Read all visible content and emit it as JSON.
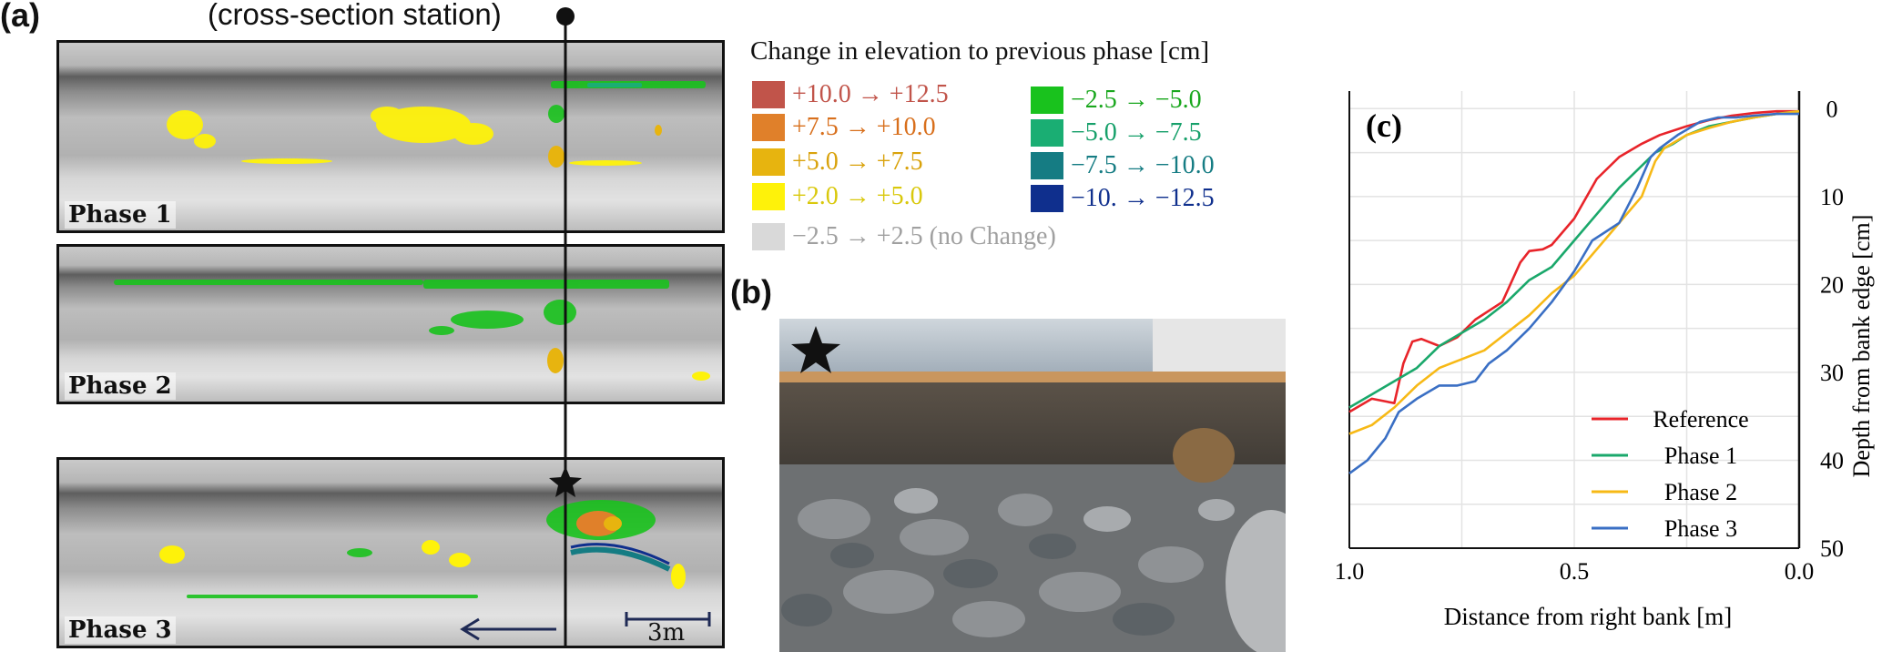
{
  "panel_a": {
    "label": "(a)",
    "station_label": "(cross-section station)",
    "phases": [
      "Phase 1",
      "Phase 2",
      "Phase 3"
    ],
    "scale_label": "3m"
  },
  "legend": {
    "title": "Change in elevation to previous phase [cm]",
    "items": [
      {
        "text": "+10.0 → +12.5",
        "color": "#c1544a"
      },
      {
        "text": "+7.5 → +10.0",
        "color": "#e0802a"
      },
      {
        "text": "+5.0 → +7.5",
        "color": "#e7b40f"
      },
      {
        "text": "+2.0 → +5.0",
        "color": "#fef20a"
      },
      {
        "text": "−2.5 → +2.5 (no Change)",
        "color": "#d9d9d9"
      },
      {
        "text": "−2.5 → −5.0",
        "color": "#19c21d"
      },
      {
        "text": "−5.0 → −7.5",
        "color": "#1aae73"
      },
      {
        "text": "−7.5 → −10.0",
        "color": "#157c83"
      },
      {
        "text": "−10. → −12.5",
        "color": "#0f2f8d"
      }
    ]
  },
  "panel_b": {
    "label": "(b)"
  },
  "panel_c": {
    "label": "(c)"
  },
  "chart_data": {
    "type": "line",
    "xlabel": "Distance from right bank [m]",
    "ylabel": "Depth from bank edge [cm]",
    "xlim": [
      1.0,
      0.0
    ],
    "ylim": [
      50,
      -2
    ],
    "xticks": [
      "1.0",
      "0.5",
      "0.0"
    ],
    "yticks": [
      "0",
      "10",
      "20",
      "30",
      "40",
      "50"
    ],
    "grid": true,
    "legend_position": "bottom-right",
    "series": [
      {
        "name": "Reference",
        "color": "#e8242a",
        "x": [
          1.0,
          0.95,
          0.9,
          0.88,
          0.86,
          0.84,
          0.8,
          0.76,
          0.72,
          0.66,
          0.62,
          0.6,
          0.57,
          0.55,
          0.5,
          0.45,
          0.4,
          0.35,
          0.31,
          0.25,
          0.2,
          0.15,
          0.1,
          0.05,
          0.0
        ],
        "y": [
          34.5,
          33.0,
          33.5,
          29.0,
          26.5,
          26.2,
          27.0,
          26.0,
          24.0,
          22.0,
          17.5,
          16.2,
          16.0,
          15.5,
          12.5,
          8.0,
          5.5,
          4.0,
          3.0,
          2.0,
          1.3,
          0.8,
          0.5,
          0.3,
          0.3
        ]
      },
      {
        "name": "Phase 1",
        "color": "#1aa86b",
        "x": [
          1.0,
          0.95,
          0.9,
          0.85,
          0.8,
          0.75,
          0.7,
          0.65,
          0.6,
          0.55,
          0.5,
          0.45,
          0.4,
          0.35,
          0.32,
          0.28,
          0.25,
          0.2,
          0.15,
          0.1,
          0.05,
          0.0
        ],
        "y": [
          34.0,
          32.5,
          31.0,
          29.5,
          27.0,
          25.5,
          24.0,
          22.0,
          19.5,
          18.0,
          15.0,
          12.0,
          9.0,
          6.5,
          5.0,
          4.0,
          3.0,
          2.0,
          1.5,
          1.0,
          0.6,
          0.3
        ]
      },
      {
        "name": "Phase 2",
        "color": "#f7b916",
        "x": [
          1.0,
          0.95,
          0.9,
          0.85,
          0.8,
          0.75,
          0.7,
          0.65,
          0.6,
          0.55,
          0.5,
          0.45,
          0.4,
          0.35,
          0.32,
          0.3,
          0.25,
          0.2,
          0.15,
          0.1,
          0.05,
          0.0
        ],
        "y": [
          37.0,
          36.0,
          34.0,
          31.5,
          29.5,
          28.5,
          27.5,
          25.5,
          23.5,
          21.0,
          19.0,
          16.0,
          13.0,
          10.0,
          6.0,
          4.5,
          3.0,
          2.2,
          1.5,
          1.0,
          0.6,
          0.3
        ]
      },
      {
        "name": "Phase 3",
        "color": "#3a6fc4",
        "x": [
          1.0,
          0.96,
          0.92,
          0.89,
          0.85,
          0.8,
          0.76,
          0.72,
          0.69,
          0.65,
          0.6,
          0.55,
          0.5,
          0.46,
          0.43,
          0.4,
          0.36,
          0.33,
          0.31,
          0.27,
          0.22,
          0.18,
          0.14,
          0.1,
          0.05,
          0.0
        ],
        "y": [
          41.5,
          40.0,
          37.5,
          34.5,
          33.0,
          31.5,
          31.5,
          31.0,
          29.0,
          27.5,
          25.0,
          22.0,
          18.5,
          15.0,
          14.0,
          13.0,
          9.0,
          5.5,
          4.5,
          3.0,
          1.5,
          1.0,
          1.0,
          0.8,
          0.6,
          0.6
        ]
      }
    ]
  }
}
